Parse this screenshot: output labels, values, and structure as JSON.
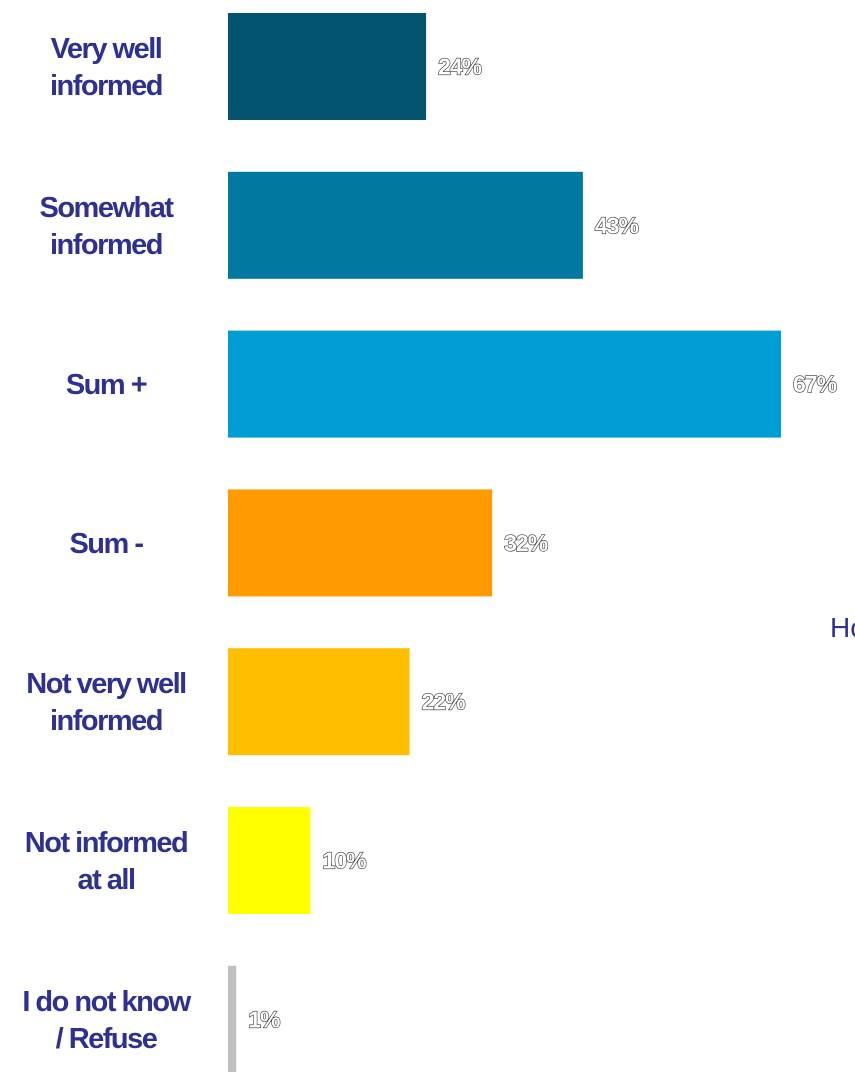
{
  "chart_data": {
    "type": "bar",
    "orientation": "horizontal",
    "categories": [
      [
        "Very well",
        "informed"
      ],
      [
        "Somewhat",
        "informed"
      ],
      [
        "Sum +"
      ],
      [
        "Sum -"
      ],
      [
        "Not very well",
        "informed"
      ],
      [
        "Not informed",
        "at all"
      ],
      [
        "I do not know",
        "/ Refuse"
      ]
    ],
    "values": [
      24,
      43,
      67,
      32,
      22,
      10,
      1
    ],
    "value_labels": [
      "24%",
      "43%",
      "67%",
      "32%",
      "22%",
      "10%",
      "1%"
    ],
    "colors": [
      "#04536f",
      "#0078a0",
      "#009ed5",
      "#ff9a00",
      "#ffbf00",
      "#ffff00",
      "#c0c0c0"
    ],
    "xlim": [
      0,
      67
    ],
    "grid": false,
    "legend": "none",
    "label_color": "#2e3192"
  },
  "stray_text": "Ho"
}
